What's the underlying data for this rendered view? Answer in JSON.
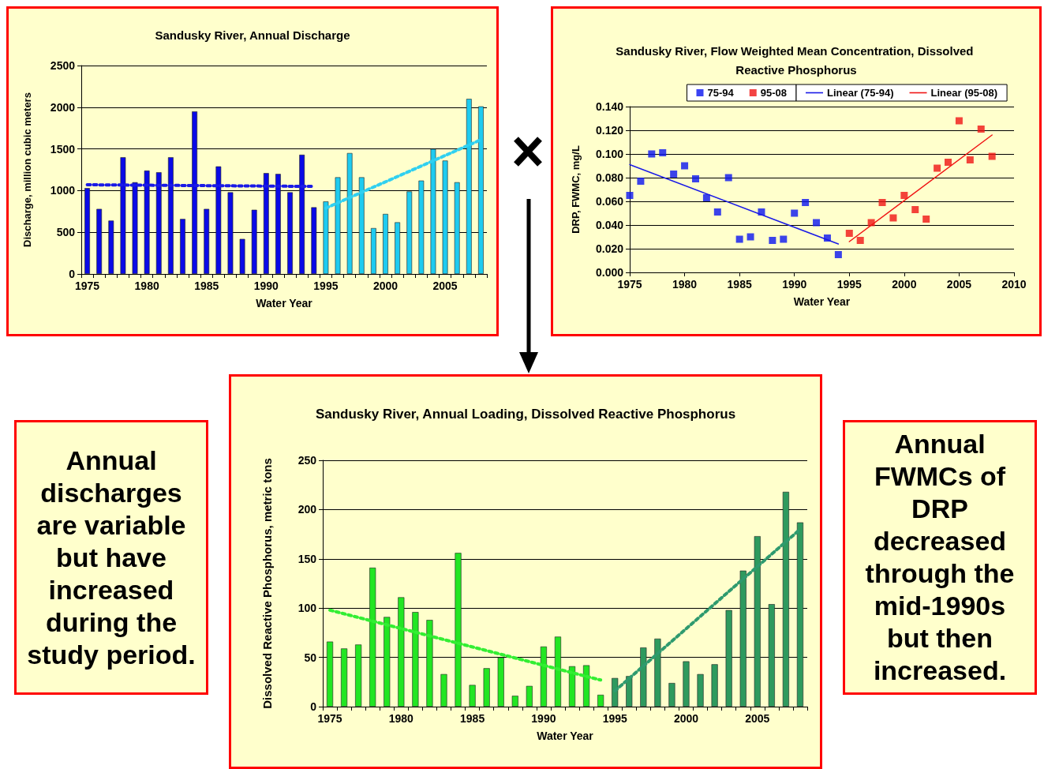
{
  "chart_data": [
    {
      "type": "bar",
      "title": "Sandusky River, Annual Discharge",
      "xlabel": "Water Year",
      "ylabel": "Discharge, million cubic meters",
      "categories": [
        "1975",
        null,
        null,
        null,
        null,
        "1980",
        null,
        null,
        null,
        null,
        "1985",
        null,
        null,
        null,
        null,
        "1990",
        null,
        null,
        null,
        null,
        "1995",
        null,
        null,
        null,
        null,
        "2000",
        null,
        null,
        null,
        null,
        "2005",
        null,
        null,
        null
      ],
      "series": [
        {
          "color": "#0a0ae6",
          "values": [
            1030,
            780,
            640,
            1400,
            1100,
            1240,
            1220,
            1400,
            660,
            1950,
            780,
            1290,
            980,
            420,
            770,
            1210,
            1200,
            980,
            1430,
            800,
            null,
            null,
            null,
            null,
            null,
            null,
            null,
            null,
            null,
            null,
            null,
            null,
            null,
            null
          ]
        },
        {
          "color": "#1ecbf0",
          "values": [
            null,
            null,
            null,
            null,
            null,
            null,
            null,
            null,
            null,
            null,
            null,
            null,
            null,
            null,
            null,
            null,
            null,
            null,
            null,
            null,
            870,
            1160,
            1450,
            1160,
            550,
            720,
            620,
            990,
            1120,
            1500,
            1360,
            1100,
            2100,
            2010
          ]
        },
        {
          "type": "line",
          "line_style": "dotted",
          "marker": "none",
          "color": "#1a1ae6",
          "values": [
            1070,
            null,
            null,
            null,
            null,
            null,
            null,
            null,
            null,
            null,
            null,
            null,
            null,
            null,
            null,
            null,
            null,
            null,
            null,
            1050,
            null,
            null,
            null,
            null,
            null,
            null,
            null,
            null,
            null,
            null,
            null,
            null,
            null,
            null
          ]
        },
        {
          "type": "line",
          "line_style": "dotted",
          "marker": "none",
          "color": "#30d0f0",
          "values": [
            null,
            null,
            null,
            null,
            null,
            null,
            null,
            null,
            null,
            null,
            null,
            null,
            null,
            null,
            null,
            null,
            null,
            null,
            null,
            null,
            790,
            null,
            null,
            null,
            null,
            null,
            null,
            null,
            null,
            null,
            null,
            null,
            null,
            1610
          ]
        }
      ],
      "ylim": [
        0,
        2500
      ],
      "yticks": [
        0,
        500,
        1000,
        1500,
        2000,
        2500
      ],
      "grid": "y"
    },
    {
      "type": "scatter",
      "title": "Sandusky River, Flow Weighted Mean Concentration, Dissolved Reactive Phosphorus",
      "xlabel": "Water Year",
      "ylabel": "DRP, FWMC, mg/L",
      "marker": "square",
      "legend": "top",
      "series": [
        {
          "name": "75-94",
          "color": "#0a14f0",
          "x": [
            1975,
            1976,
            1977,
            1978,
            1979,
            1980,
            1981,
            1982,
            1983,
            1984,
            1985,
            1986,
            1987,
            1988,
            1989,
            1990,
            1991,
            1992,
            1993,
            1994
          ],
          "values": [
            0.065,
            0.077,
            0.1,
            0.101,
            0.083,
            0.09,
            0.079,
            0.063,
            0.051,
            0.08,
            0.028,
            0.03,
            0.051,
            0.027,
            0.028,
            0.05,
            0.059,
            0.042,
            0.029,
            0.015
          ]
        },
        {
          "name": "95-08",
          "color": "#f01414",
          "x": [
            1995,
            1996,
            1997,
            1998,
            1999,
            2000,
            2001,
            2002,
            2003,
            2004,
            2005,
            2006,
            2007,
            2008
          ],
          "values": [
            0.033,
            0.027,
            0.042,
            0.059,
            0.046,
            0.065,
            0.053,
            0.045,
            0.088,
            0.093,
            0.128,
            0.095,
            0.121,
            0.098
          ]
        },
        {
          "name": "Linear (75-94)",
          "type": "line",
          "marker": "none",
          "line_style": "solid",
          "color": "#1a1ae6",
          "x": [
            1975,
            1994
          ],
          "values": [
            0.091,
            0.024
          ]
        },
        {
          "name": "Linear (95-08)",
          "type": "line",
          "marker": "none",
          "line_style": "solid",
          "color": "#f01414",
          "x": [
            1995,
            2008
          ],
          "values": [
            0.026,
            0.116
          ]
        }
      ],
      "xlim": [
        1975,
        2010
      ],
      "xticks": [
        1975,
        1980,
        1985,
        1990,
        1995,
        2000,
        2005,
        2010
      ],
      "ylim": [
        0,
        0.14
      ],
      "yticks": [
        {
          "value": 0,
          "label": "0.000"
        },
        {
          "value": 0.02,
          "label": "0.020"
        },
        {
          "value": 0.04,
          "label": "0.040"
        },
        {
          "value": 0.06,
          "label": "0.060"
        },
        {
          "value": 0.08,
          "label": "0.080"
        },
        {
          "value": 0.1,
          "label": "0.100"
        },
        {
          "value": 0.12,
          "label": "0.120"
        },
        {
          "value": 0.14,
          "label": "0.140"
        }
      ],
      "grid": "y"
    },
    {
      "type": "other",
      "annotations": [
        "Annual discharges are variable but have increased during the study period."
      ]
    },
    {
      "type": "bar",
      "title": "Sandusky River, Annual Loading, Dissolved Reactive Phosphorus",
      "xlabel": "Water Year",
      "ylabel": "Dissolved Reactive Phosphorus, metric tons",
      "categories": [
        "1975",
        null,
        null,
        null,
        null,
        "1980",
        null,
        null,
        null,
        null,
        "1985",
        null,
        null,
        null,
        null,
        "1990",
        null,
        null,
        null,
        null,
        "1995",
        null,
        null,
        null,
        null,
        "2000",
        null,
        null,
        null,
        null,
        "2005",
        null,
        null,
        null
      ],
      "series": [
        {
          "color": "#22e622",
          "values": [
            66,
            59,
            63,
            141,
            91,
            111,
            96,
            88,
            33,
            156,
            22,
            39,
            50,
            11,
            21,
            61,
            71,
            41,
            42,
            12,
            null,
            null,
            null,
            null,
            null,
            null,
            null,
            null,
            null,
            null,
            null,
            null,
            null,
            null
          ]
        },
        {
          "color": "#2e9a5e",
          "values": [
            null,
            null,
            null,
            null,
            null,
            null,
            null,
            null,
            null,
            null,
            null,
            null,
            null,
            null,
            null,
            null,
            null,
            null,
            null,
            null,
            29,
            31,
            60,
            69,
            24,
            46,
            33,
            43,
            98,
            138,
            173,
            104,
            218,
            187
          ]
        },
        {
          "type": "line",
          "line_style": "dotted",
          "marker": "none",
          "color": "#33ee33",
          "values": [
            98,
            null,
            null,
            null,
            null,
            null,
            null,
            null,
            null,
            null,
            null,
            null,
            null,
            null,
            null,
            null,
            null,
            null,
            null,
            27,
            null,
            null,
            null,
            null,
            null,
            null,
            null,
            null,
            null,
            null,
            null,
            null,
            null,
            null
          ]
        },
        {
          "type": "line",
          "line_style": "dotted",
          "marker": "none",
          "color": "#2e9a6e",
          "values": [
            null,
            null,
            null,
            null,
            null,
            null,
            null,
            null,
            null,
            null,
            null,
            null,
            null,
            null,
            null,
            null,
            null,
            null,
            null,
            null,
            16,
            null,
            null,
            null,
            null,
            null,
            null,
            null,
            null,
            null,
            null,
            null,
            null,
            180
          ]
        }
      ],
      "ylim": [
        0,
        250
      ],
      "yticks": [
        0,
        50,
        100,
        150,
        200,
        250
      ],
      "grid": "y"
    },
    {
      "type": "other",
      "annotations": [
        "Annual FWMCs of DRP decreased through the mid-1990s but then increased."
      ]
    }
  ]
}
